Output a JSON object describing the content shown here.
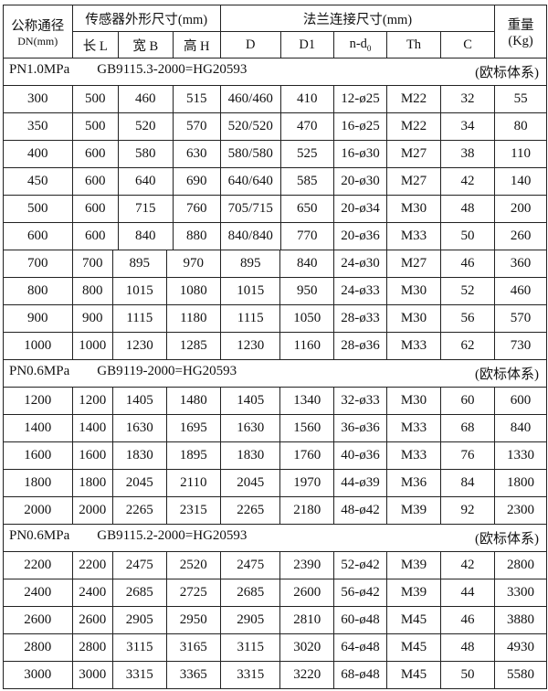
{
  "header": {
    "dn_label": "公称通径",
    "dn_unit": "DN(mm)",
    "sensor_group": "传感器外形尺寸(mm)",
    "flange_group": "法兰连接尺寸(mm)",
    "weight_label": "重量",
    "weight_unit": "(Kg)",
    "columns": [
      "长 L",
      "宽 B",
      "高 H",
      "D",
      "D1",
      "n-d",
      "Th",
      "C"
    ],
    "nd_subscript": "0"
  },
  "sections": [
    {
      "pressure": "PN1.0MPa",
      "standard": "GB9115.3-2000=HG20593",
      "system": "(欧标体系)",
      "rows": [
        [
          "300",
          "500",
          "460",
          "515",
          "460/460",
          "410",
          "12-ø25",
          "M22",
          "32",
          "55"
        ],
        [
          "350",
          "500",
          "520",
          "570",
          "520/520",
          "470",
          "16-ø25",
          "M22",
          "34",
          "80"
        ],
        [
          "400",
          "600",
          "580",
          "630",
          "580/580",
          "525",
          "16-ø30",
          "M27",
          "38",
          "110"
        ],
        [
          "450",
          "600",
          "640",
          "690",
          "640/640",
          "585",
          "20-ø30",
          "M27",
          "42",
          "140"
        ],
        [
          "500",
          "600",
          "715",
          "760",
          "705/715",
          "650",
          "20-ø34",
          "M30",
          "48",
          "200"
        ],
        [
          "600",
          "600",
          "840",
          "880",
          "840/840",
          "770",
          "20-ø36",
          "M33",
          "50",
          "260"
        ],
        [
          "700",
          "700",
          "895",
          "970",
          "895",
          "840",
          "24-ø30",
          "M27",
          "46",
          "360"
        ],
        [
          "800",
          "800",
          "1015",
          "1080",
          "1015",
          "950",
          "24-ø33",
          "M30",
          "52",
          "460"
        ],
        [
          "900",
          "900",
          "1115",
          "1180",
          "1115",
          "1050",
          "28-ø33",
          "M30",
          "56",
          "570"
        ],
        [
          "1000",
          "1000",
          "1230",
          "1285",
          "1230",
          "1160",
          "28-ø36",
          "M33",
          "62",
          "730"
        ]
      ]
    },
    {
      "pressure": "PN0.6MPa",
      "standard": "GB9119-2000=HG20593",
      "system": "(欧标体系)",
      "rows": [
        [
          "1200",
          "1200",
          "1405",
          "1480",
          "1405",
          "1340",
          "32-ø33",
          "M30",
          "60",
          "600"
        ],
        [
          "1400",
          "1400",
          "1630",
          "1695",
          "1630",
          "1560",
          "36-ø36",
          "M33",
          "68",
          "840"
        ],
        [
          "1600",
          "1600",
          "1830",
          "1895",
          "1830",
          "1760",
          "40-ø36",
          "M33",
          "76",
          "1330"
        ],
        [
          "1800",
          "1800",
          "2045",
          "2110",
          "2045",
          "1970",
          "44-ø39",
          "M36",
          "84",
          "1800"
        ],
        [
          "2000",
          "2000",
          "2265",
          "2315",
          "2265",
          "2180",
          "48-ø42",
          "M39",
          "92",
          "2300"
        ]
      ]
    },
    {
      "pressure": "PN0.6MPa",
      "standard": "GB9115.2-2000=HG20593",
      "system": "(欧标体系)",
      "rows": [
        [
          "2200",
          "2200",
          "2475",
          "2520",
          "2475",
          "2390",
          "52-ø42",
          "M39",
          "42",
          "2800"
        ],
        [
          "2400",
          "2400",
          "2685",
          "2725",
          "2685",
          "2600",
          "56-ø42",
          "M39",
          "44",
          "3300"
        ],
        [
          "2600",
          "2600",
          "2905",
          "2950",
          "2905",
          "2810",
          "60-ø48",
          "M45",
          "46",
          "3880"
        ],
        [
          "2800",
          "2800",
          "3115",
          "3165",
          "3115",
          "3020",
          "64-ø48",
          "M45",
          "48",
          "4930"
        ],
        [
          "3000",
          "3000",
          "3315",
          "3365",
          "3315",
          "3220",
          "68-ø48",
          "M45",
          "50",
          "5580"
        ]
      ]
    }
  ]
}
